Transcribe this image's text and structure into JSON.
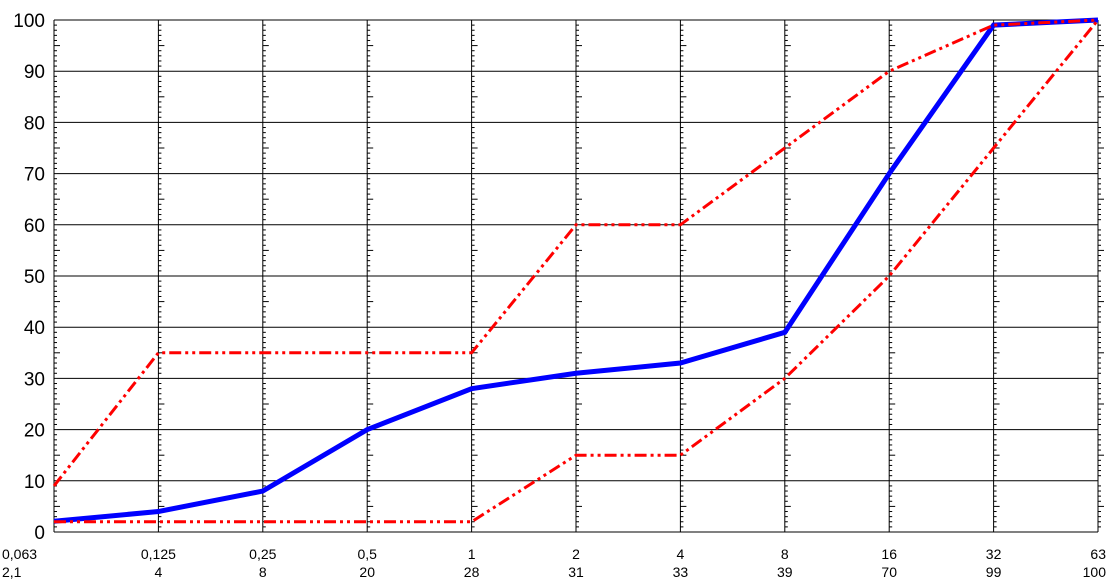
{
  "chart_data": {
    "type": "line",
    "title": "",
    "xlabel": "",
    "ylabel": "",
    "ylim": [
      0,
      100
    ],
    "yticks": [
      0,
      10,
      20,
      30,
      40,
      50,
      60,
      70,
      80,
      90,
      100
    ],
    "categories": [
      "0,063",
      "0,125",
      "0,25",
      "0,5",
      "1",
      "2",
      "4",
      "8",
      "16",
      "32",
      "63"
    ],
    "category_values": [
      "2,1",
      "4",
      "8",
      "20",
      "28",
      "31",
      "33",
      "39",
      "70",
      "99",
      "100"
    ],
    "grid": true,
    "legend": "none",
    "series": [
      {
        "color": "#0000ff",
        "style": "solid",
        "values": [
          2.1,
          4,
          8,
          20,
          28,
          31,
          33,
          39,
          70,
          99,
          100
        ]
      },
      {
        "color": "#ff0000",
        "style": "dash-dot-dot",
        "values": [
          9,
          35,
          35,
          35,
          35,
          60,
          60,
          75,
          90,
          99,
          100
        ]
      },
      {
        "color": "#ff0000",
        "style": "dash-dot-dot",
        "values": [
          2,
          2,
          2,
          2,
          2,
          15,
          15,
          30,
          50,
          75,
          100
        ]
      }
    ]
  }
}
